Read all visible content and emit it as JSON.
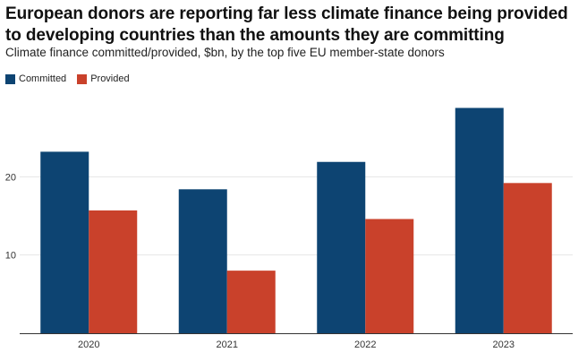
{
  "title": "European donors are reporting far less climate finance being provided to developing countries than the amounts they are committing",
  "subtitle": "Climate finance committed/provided, $bn, by the top five EU member-state donors",
  "colors": {
    "committed": "#0d4472",
    "provided": "#c9412b",
    "grid": "#e6e6e6",
    "axis": "#333333"
  },
  "chart_data": {
    "type": "bar",
    "title": "European donors are reporting far less climate finance being provided to developing countries than the amounts they are committing",
    "subtitle": "Climate finance committed/provided, $bn, by the top five EU member-state donors",
    "categories": [
      "2020",
      "2021",
      "2022",
      "2023"
    ],
    "series": [
      {
        "name": "Committed",
        "values": [
          23.2,
          18.4,
          21.9,
          28.8
        ]
      },
      {
        "name": "Provided",
        "values": [
          15.7,
          8.0,
          14.6,
          19.2
        ]
      }
    ],
    "y_ticks": [
      "10",
      "20"
    ],
    "ylim": [
      0,
      30
    ],
    "grid": true,
    "legend": "top-left"
  }
}
